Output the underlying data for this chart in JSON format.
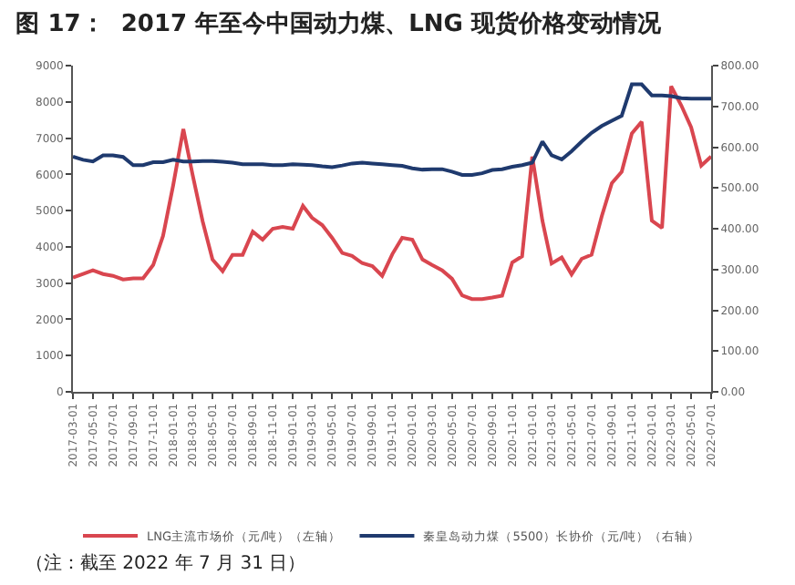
{
  "chart_data": {
    "type": "line",
    "title": "图 17：  2017 年至今中国动力煤、LNG 现货价格变动情况",
    "x": [
      "2017-03",
      "2017-04",
      "2017-05",
      "2017-06",
      "2017-07",
      "2017-08",
      "2017-09",
      "2017-10",
      "2017-11",
      "2017-12",
      "2018-01",
      "2018-02",
      "2018-03",
      "2018-04",
      "2018-05",
      "2018-06",
      "2018-07",
      "2018-08",
      "2018-09",
      "2018-10",
      "2018-11",
      "2018-12",
      "2019-01",
      "2019-02",
      "2019-03",
      "2019-04",
      "2019-05",
      "2019-06",
      "2019-07",
      "2019-08",
      "2019-09",
      "2019-10",
      "2019-11",
      "2019-12",
      "2020-01",
      "2020-02",
      "2020-03",
      "2020-04",
      "2020-05",
      "2020-06",
      "2020-07",
      "2020-08",
      "2020-09",
      "2020-10",
      "2020-11",
      "2020-12",
      "2021-01",
      "2021-02",
      "2021-03",
      "2021-04",
      "2021-05",
      "2021-06",
      "2021-07",
      "2021-08",
      "2021-09",
      "2021-10",
      "2021-11",
      "2021-12",
      "2022-01",
      "2022-02",
      "2022-03",
      "2022-04",
      "2022-05",
      "2022-06",
      "2022-07"
    ],
    "series": [
      {
        "name": "LNG主流市场价（元/吨）（左轴）",
        "color": "#d9464f",
        "values": [
          3150,
          3250,
          3350,
          3250,
          3200,
          3100,
          3130,
          3130,
          3500,
          4300,
          5700,
          7250,
          6000,
          4700,
          3650,
          3330,
          3780,
          3780,
          4420,
          4200,
          4500,
          4550,
          4500,
          5130,
          4800,
          4600,
          4250,
          3830,
          3750,
          3550,
          3470,
          3200,
          3800,
          4250,
          4200,
          3650,
          3500,
          3350,
          3120,
          2660,
          2560,
          2560,
          2600,
          2650,
          3570,
          3740,
          6490,
          4720,
          3540,
          3710,
          3240,
          3670,
          3780,
          4840,
          5760,
          6070,
          7130,
          7450,
          4720,
          4520,
          8430,
          7900,
          7300,
          6240,
          6490
        ]
      },
      {
        "name": "秦皇岛动力煤（5500）长协价（元/吨）（右轴）",
        "color": "#1f3a6e",
        "axis": "y2",
        "values": [
          577,
          569,
          565,
          580,
          580,
          576,
          556,
          556,
          563,
          563,
          569,
          565,
          565,
          566,
          566,
          564,
          562,
          558,
          558,
          558,
          556,
          556,
          558,
          557,
          556,
          553,
          551,
          555,
          560,
          562,
          560,
          558,
          556,
          554,
          548,
          545,
          546,
          546,
          540,
          532,
          532,
          536,
          544,
          546,
          552,
          556,
          562,
          614,
          580,
          570,
          590,
          614,
          635,
          652,
          665,
          677,
          754,
          754,
          727,
          727,
          725,
          720,
          719,
          719,
          719
        ]
      }
    ],
    "xlim": [
      "2017-03-01",
      "2022-07-01"
    ],
    "xticks": [
      "2017-03-01",
      "2017-05-01",
      "2017-07-01",
      "2017-09-01",
      "2017-11-01",
      "2018-01-01",
      "2018-03-01",
      "2018-05-01",
      "2018-07-01",
      "2018-09-01",
      "2018-11-01",
      "2019-01-01",
      "2019-03-01",
      "2019-05-01",
      "2019-07-01",
      "2019-09-01",
      "2019-11-01",
      "2020-01-01",
      "2020-03-01",
      "2020-05-01",
      "2020-07-01",
      "2020-09-01",
      "2020-11-01",
      "2021-01-01",
      "2021-03-01",
      "2021-05-01",
      "2021-07-01",
      "2021-09-01",
      "2021-11-01",
      "2022-01-01",
      "2022-03-01",
      "2022-05-01",
      "2022-07-01"
    ],
    "ylim": [
      0,
      9000
    ],
    "yticks": [
      0,
      1000,
      2000,
      3000,
      4000,
      5000,
      6000,
      7000,
      8000,
      9000
    ],
    "y2lim": [
      0,
      800
    ],
    "y2ticks": [
      {
        "value": 0,
        "label": "0.00"
      },
      {
        "value": 100,
        "label": "100.00"
      },
      {
        "value": 200,
        "label": "200.00"
      },
      {
        "value": 300,
        "label": "300.00"
      },
      {
        "value": 400,
        "label": "400.00"
      },
      {
        "value": 500,
        "label": "500.00"
      },
      {
        "value": 600,
        "label": "600.00"
      },
      {
        "value": 700,
        "label": "700.00"
      },
      {
        "value": 800,
        "label": "800.00"
      }
    ],
    "legend": "bottom",
    "annotations": [
      "（注：截至 2022 年 7 月 31 日）"
    ]
  }
}
